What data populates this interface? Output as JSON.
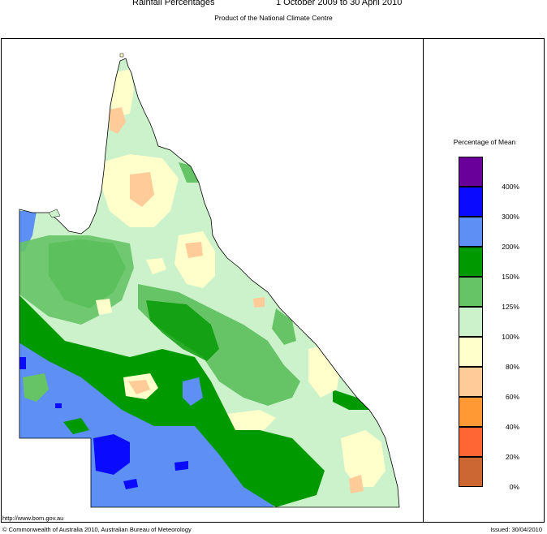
{
  "header": {
    "title": "Rainfall Percentages",
    "period": "1 October 2009 to 30 April 2010",
    "subtitle": "Product of the National Climate Centre"
  },
  "legend": {
    "title": "Percentage of Mean",
    "items": [
      {
        "label": "400%",
        "color": "#6a0099"
      },
      {
        "label": "300%",
        "color": "#0a0aff"
      },
      {
        "label": "200%",
        "color": "#5d8ff5"
      },
      {
        "label": "150%",
        "color": "#009900"
      },
      {
        "label": "125%",
        "color": "#66c466"
      },
      {
        "label": "100%",
        "color": "#ccf2cc"
      },
      {
        "label": "80%",
        "color": "#ffffcc"
      },
      {
        "label": "60%",
        "color": "#ffcc99"
      },
      {
        "label": "40%",
        "color": "#ff9933"
      },
      {
        "label": "20%",
        "color": "#ff6633"
      },
      {
        "label": "0%",
        "color": "#cc6633"
      }
    ]
  },
  "footer": {
    "url": "http://www.bom.gov.au",
    "copyright": "© Commonwealth of Australia 2010, Australian Bureau of Meteorology",
    "issued": "Issued: 30/04/2010"
  }
}
